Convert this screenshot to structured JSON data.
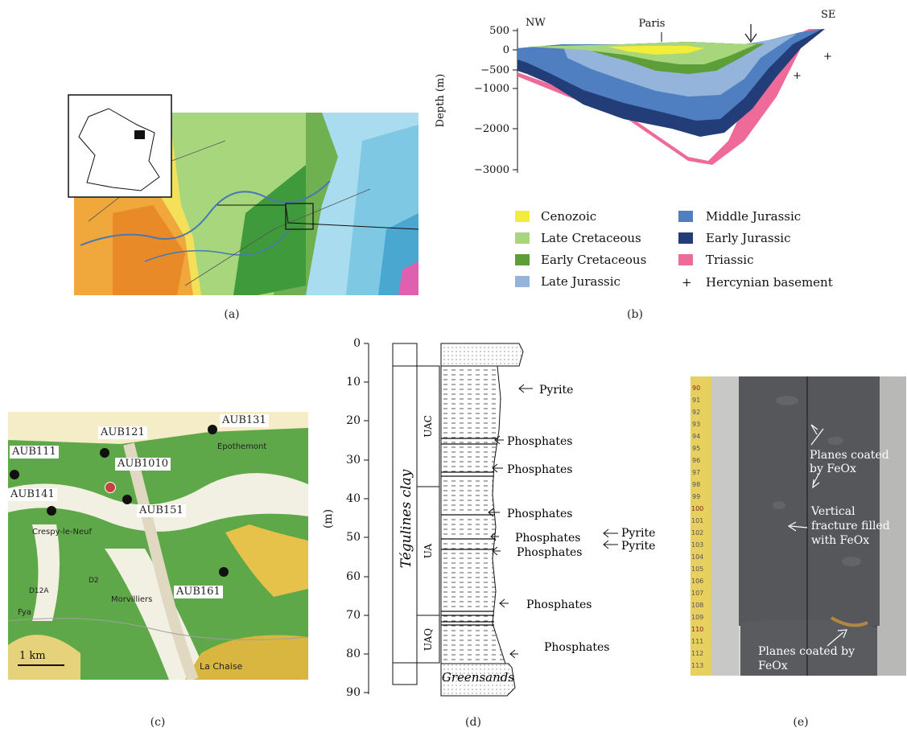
{
  "captions": {
    "a": "(a)",
    "b": "(b)",
    "c": "(c)",
    "d": "(d)",
    "e": "(e)"
  },
  "cross_section": {
    "nw": "NW",
    "se": "SE",
    "paris": "Paris",
    "ylabel": "Depth (m)",
    "yticks": [
      "500",
      "0",
      "−500",
      "−1000",
      "−2000",
      "−3000"
    ],
    "plus": "+",
    "legend": [
      {
        "label": "Cenozoic",
        "color": "#f2ec3a"
      },
      {
        "label": "Late Cretaceous",
        "color": "#a8d67c"
      },
      {
        "label": "Early Cretaceous",
        "color": "#5e9e38"
      },
      {
        "label": "Late Jurassic",
        "color": "#94b4dc"
      },
      {
        "label": "Middle Jurassic",
        "color": "#4f7fc0"
      },
      {
        "label": "Early Jurassic",
        "color": "#223d78"
      },
      {
        "label": "Triassic",
        "color": "#ee6a98"
      },
      {
        "label": "Hercynian basement",
        "color": "#111111",
        "marker": "+"
      }
    ]
  },
  "wells": {
    "labels": [
      "AUB131",
      "AUB121",
      "AUB111",
      "AUB1010",
      "AUB141",
      "AUB151",
      "AUB161"
    ],
    "scale": "1 km",
    "places": [
      "Epothemont",
      "Crespy-le-Neuf",
      "Morvilliers",
      "La Chaise",
      "D2",
      "D12A",
      "Fya"
    ]
  },
  "log": {
    "ylabel": "(m)",
    "yticks": [
      "0",
      "10",
      "20",
      "30",
      "40",
      "50",
      "60",
      "70",
      "80",
      "90"
    ],
    "formation": "Tégulines clay",
    "units": [
      "UAC",
      "UA",
      "UAQ"
    ],
    "greensands": "Greensands",
    "annotations": [
      "Pyrite",
      "Phosphates",
      "Phosphates",
      "Phosphates",
      "Phosphates",
      "Phosphates",
      "Phosphates",
      "Phosphates"
    ],
    "pyrite_pair": [
      "Pyrite",
      "Pyrite"
    ]
  },
  "core": {
    "note1": "Planes coated by FeOx",
    "note2a": "Vertical",
    "note2b": "fracture filled",
    "note2c": "with FeOx",
    "note3a": "Planes coated by",
    "note3b": "FeOx",
    "ruler": [
      "90",
      "91",
      "92",
      "93",
      "94",
      "95",
      "96",
      "97",
      "98",
      "99",
      "100",
      "101",
      "102",
      "103",
      "104",
      "105",
      "106",
      "107",
      "108",
      "109",
      "110",
      "111",
      "112",
      "113"
    ]
  }
}
